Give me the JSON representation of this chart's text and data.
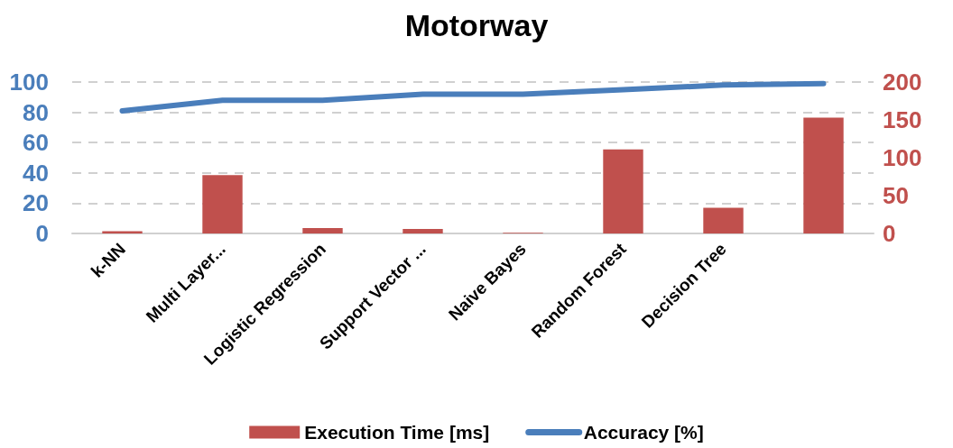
{
  "chart_data": {
    "type": "bar",
    "title": "Motorway",
    "categories": [
      "k-NN",
      "Multi Layer...",
      "Logistic Regression",
      "Support Vector ...",
      "Naive Bayes",
      "Random Forest",
      "Decision Tree",
      null
    ],
    "series": [
      {
        "name": "Execution Time [ms]",
        "color": "#c0504d",
        "axis": "y2",
        "values": [
          3,
          77,
          7,
          6,
          1,
          111,
          34,
          153
        ]
      },
      {
        "name": "Accuracy [%]",
        "type": "line",
        "color": "#4a7ebb",
        "values": [
          81,
          88,
          88,
          92,
          92,
          95,
          98,
          99
        ]
      }
    ],
    "ylim": [
      0,
      100
    ],
    "yticks": [
      0,
      20,
      40,
      60,
      80,
      100
    ],
    "y2lim": [
      0,
      200
    ],
    "y2ticks": [
      0,
      50,
      100,
      150,
      200
    ],
    "grid": "y",
    "legend": "bottom"
  }
}
